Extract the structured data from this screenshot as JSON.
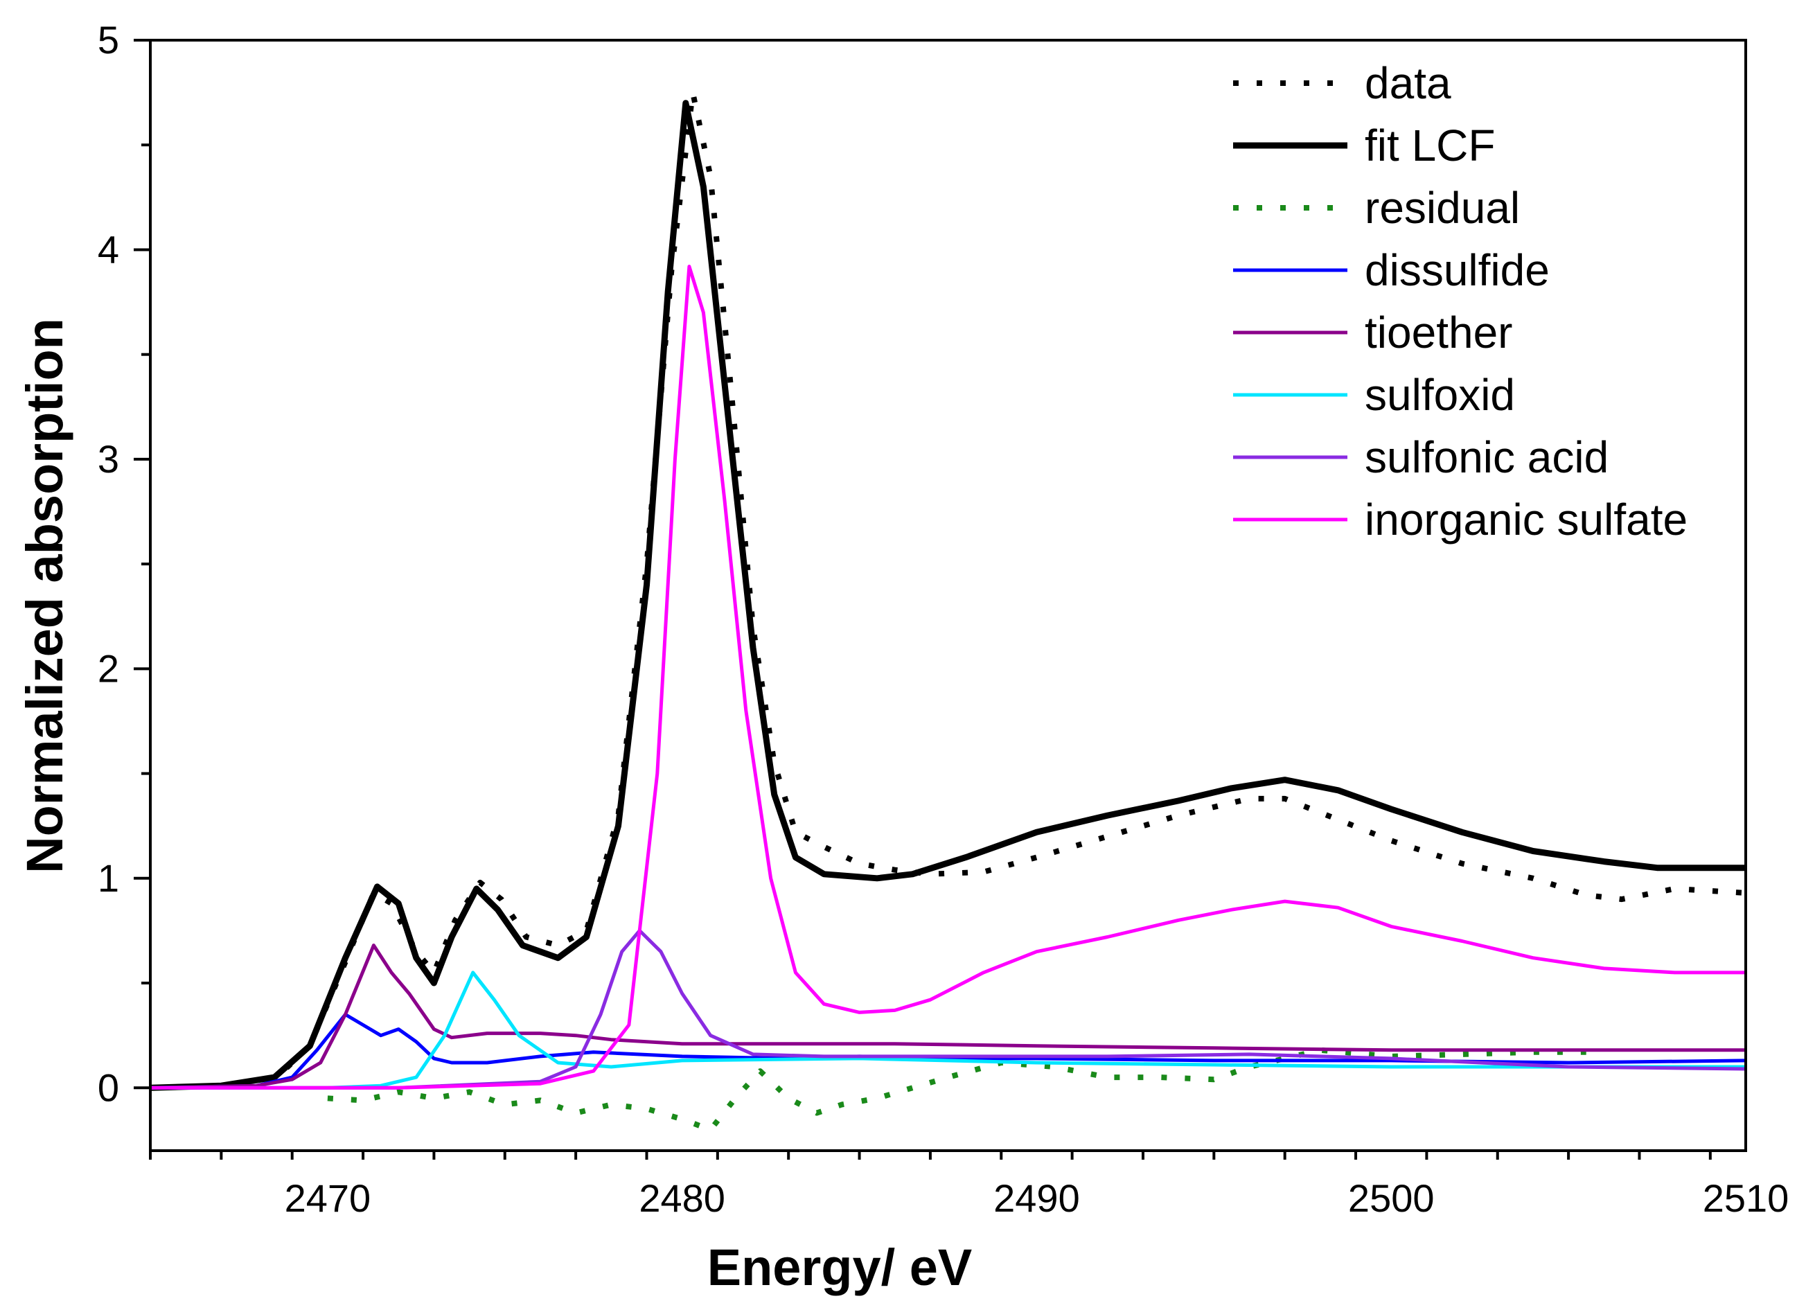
{
  "chart_data": {
    "type": "line",
    "title": "",
    "xlabel": "Energy/ eV",
    "ylabel": "Normalized absorption",
    "xlim": [
      2465,
      2510
    ],
    "ylim": [
      -0.3,
      5
    ],
    "xticks": [
      2470,
      2480,
      2490,
      2500,
      2510
    ],
    "yticks": [
      0,
      1,
      2,
      3,
      4,
      5
    ],
    "legend_position": "top-right",
    "series": [
      {
        "name": "data",
        "color": "#000000",
        "style": "dotted",
        "width": 8,
        "points": [
          [
            2465,
            0
          ],
          [
            2467,
            0.01
          ],
          [
            2468.5,
            0.04
          ],
          [
            2469.5,
            0.2
          ],
          [
            2470.5,
            0.6
          ],
          [
            2471.3,
            0.93
          ],
          [
            2471.8,
            0.88
          ],
          [
            2472.5,
            0.65
          ],
          [
            2473,
            0.55
          ],
          [
            2473.6,
            0.8
          ],
          [
            2474.3,
            0.98
          ],
          [
            2474.9,
            0.9
          ],
          [
            2475.6,
            0.72
          ],
          [
            2476.5,
            0.68
          ],
          [
            2477.3,
            0.75
          ],
          [
            2478.2,
            1.3
          ],
          [
            2479,
            2.5
          ],
          [
            2479.7,
            3.9
          ],
          [
            2480.3,
            4.75
          ],
          [
            2480.8,
            4.35
          ],
          [
            2481.4,
            3.3
          ],
          [
            2482,
            2.2
          ],
          [
            2482.6,
            1.55
          ],
          [
            2483.2,
            1.22
          ],
          [
            2484,
            1.15
          ],
          [
            2485,
            1.07
          ],
          [
            2486,
            1.04
          ],
          [
            2487,
            1.02
          ],
          [
            2488.5,
            1.03
          ],
          [
            2490,
            1.1
          ],
          [
            2492,
            1.2
          ],
          [
            2494,
            1.3
          ],
          [
            2496,
            1.38
          ],
          [
            2497,
            1.38
          ],
          [
            2498.5,
            1.28
          ],
          [
            2500,
            1.18
          ],
          [
            2502,
            1.07
          ],
          [
            2504,
            1.0
          ],
          [
            2505.5,
            0.92
          ],
          [
            2506.5,
            0.9
          ],
          [
            2508,
            0.95
          ],
          [
            2510,
            0.93
          ]
        ]
      },
      {
        "name": "fit LCF",
        "color": "#000000",
        "style": "solid",
        "width": 9,
        "points": [
          [
            2465,
            0
          ],
          [
            2467,
            0.01
          ],
          [
            2468.5,
            0.05
          ],
          [
            2469.5,
            0.2
          ],
          [
            2470.5,
            0.62
          ],
          [
            2471.4,
            0.96
          ],
          [
            2472,
            0.88
          ],
          [
            2472.5,
            0.62
          ],
          [
            2473,
            0.5
          ],
          [
            2473.5,
            0.72
          ],
          [
            2474.2,
            0.95
          ],
          [
            2474.8,
            0.85
          ],
          [
            2475.5,
            0.68
          ],
          [
            2476.5,
            0.62
          ],
          [
            2477.3,
            0.72
          ],
          [
            2478.2,
            1.25
          ],
          [
            2479,
            2.4
          ],
          [
            2479.6,
            3.8
          ],
          [
            2480.1,
            4.7
          ],
          [
            2480.6,
            4.3
          ],
          [
            2481.3,
            3.2
          ],
          [
            2482,
            2.1
          ],
          [
            2482.6,
            1.4
          ],
          [
            2483.2,
            1.1
          ],
          [
            2484,
            1.02
          ],
          [
            2485.5,
            1.0
          ],
          [
            2486.5,
            1.02
          ],
          [
            2488,
            1.1
          ],
          [
            2490,
            1.22
          ],
          [
            2492,
            1.3
          ],
          [
            2494,
            1.37
          ],
          [
            2495.5,
            1.43
          ],
          [
            2497,
            1.47
          ],
          [
            2498.5,
            1.42
          ],
          [
            2500,
            1.33
          ],
          [
            2502,
            1.22
          ],
          [
            2504,
            1.13
          ],
          [
            2506,
            1.08
          ],
          [
            2507.5,
            1.05
          ],
          [
            2510,
            1.05
          ]
        ]
      },
      {
        "name": "residual",
        "color": "#1a8a1a",
        "style": "dotted",
        "width": 8,
        "points": [
          [
            2470,
            -0.05
          ],
          [
            2471,
            -0.06
          ],
          [
            2472,
            -0.02
          ],
          [
            2473,
            -0.05
          ],
          [
            2474,
            -0.02
          ],
          [
            2475,
            -0.08
          ],
          [
            2476,
            -0.06
          ],
          [
            2477,
            -0.12
          ],
          [
            2478,
            -0.08
          ],
          [
            2479,
            -0.1
          ],
          [
            2480,
            -0.15
          ],
          [
            2480.8,
            -0.2
          ],
          [
            2481.5,
            -0.05
          ],
          [
            2482.2,
            0.08
          ],
          [
            2483,
            -0.05
          ],
          [
            2483.8,
            -0.12
          ],
          [
            2484.5,
            -0.08
          ],
          [
            2485.5,
            -0.05
          ],
          [
            2486.5,
            0
          ],
          [
            2487.5,
            0.05
          ],
          [
            2489,
            0.12
          ],
          [
            2490.5,
            0.1
          ],
          [
            2492,
            0.05
          ],
          [
            2493.5,
            0.05
          ],
          [
            2495,
            0.04
          ],
          [
            2496,
            0.1
          ],
          [
            2498,
            0.18
          ],
          [
            2500,
            0.15
          ],
          [
            2502,
            0.16
          ],
          [
            2504,
            0.17
          ],
          [
            2505.5,
            0.17
          ]
        ]
      },
      {
        "name": "dissulfide",
        "color": "#0000ff",
        "style": "solid",
        "width": 5,
        "points": [
          [
            2465,
            0
          ],
          [
            2468,
            0.01
          ],
          [
            2469,
            0.05
          ],
          [
            2469.7,
            0.18
          ],
          [
            2470.5,
            0.35
          ],
          [
            2471,
            0.3
          ],
          [
            2471.5,
            0.25
          ],
          [
            2472,
            0.28
          ],
          [
            2472.5,
            0.22
          ],
          [
            2473,
            0.14
          ],
          [
            2473.5,
            0.12
          ],
          [
            2474.5,
            0.12
          ],
          [
            2476,
            0.15
          ],
          [
            2477.5,
            0.17
          ],
          [
            2480,
            0.15
          ],
          [
            2483,
            0.14
          ],
          [
            2485,
            0.15
          ],
          [
            2487,
            0.14
          ],
          [
            2490,
            0.14
          ],
          [
            2495,
            0.13
          ],
          [
            2500,
            0.13
          ],
          [
            2505,
            0.12
          ],
          [
            2510,
            0.13
          ]
        ]
      },
      {
        "name": "tioether",
        "color": "#8b008b",
        "style": "solid",
        "width": 5,
        "points": [
          [
            2465,
            0
          ],
          [
            2468,
            0.01
          ],
          [
            2469,
            0.04
          ],
          [
            2469.8,
            0.12
          ],
          [
            2470.5,
            0.35
          ],
          [
            2471.3,
            0.68
          ],
          [
            2471.8,
            0.55
          ],
          [
            2472.3,
            0.45
          ],
          [
            2473,
            0.28
          ],
          [
            2473.5,
            0.24
          ],
          [
            2474.5,
            0.26
          ],
          [
            2476,
            0.26
          ],
          [
            2477,
            0.25
          ],
          [
            2478,
            0.23
          ],
          [
            2480,
            0.21
          ],
          [
            2483,
            0.21
          ],
          [
            2486,
            0.21
          ],
          [
            2490,
            0.2
          ],
          [
            2495,
            0.19
          ],
          [
            2500,
            0.18
          ],
          [
            2505,
            0.18
          ],
          [
            2510,
            0.18
          ]
        ]
      },
      {
        "name": "sulfoxid",
        "color": "#00e5ff",
        "style": "solid",
        "width": 5,
        "points": [
          [
            2465,
            0
          ],
          [
            2470,
            0
          ],
          [
            2471.5,
            0.01
          ],
          [
            2472.5,
            0.05
          ],
          [
            2473.3,
            0.25
          ],
          [
            2474.1,
            0.55
          ],
          [
            2474.7,
            0.42
          ],
          [
            2475.4,
            0.25
          ],
          [
            2476.5,
            0.12
          ],
          [
            2478,
            0.1
          ],
          [
            2480,
            0.13
          ],
          [
            2485,
            0.14
          ],
          [
            2490,
            0.12
          ],
          [
            2495,
            0.11
          ],
          [
            2500,
            0.1
          ],
          [
            2505,
            0.1
          ],
          [
            2510,
            0.1
          ]
        ]
      },
      {
        "name": "sulfonic acid",
        "color": "#8a2be2",
        "style": "solid",
        "width": 5,
        "points": [
          [
            2465,
            0
          ],
          [
            2472,
            0
          ],
          [
            2476,
            0.03
          ],
          [
            2477,
            0.1
          ],
          [
            2477.7,
            0.35
          ],
          [
            2478.3,
            0.65
          ],
          [
            2478.8,
            0.75
          ],
          [
            2479.4,
            0.65
          ],
          [
            2480,
            0.45
          ],
          [
            2480.8,
            0.25
          ],
          [
            2482,
            0.16
          ],
          [
            2484,
            0.15
          ],
          [
            2488,
            0.15
          ],
          [
            2492,
            0.15
          ],
          [
            2496,
            0.16
          ],
          [
            2500,
            0.14
          ],
          [
            2505,
            0.1
          ],
          [
            2510,
            0.09
          ]
        ]
      },
      {
        "name": "inorganic sulfate",
        "color": "#ff00ff",
        "style": "solid",
        "width": 5,
        "points": [
          [
            2465,
            0
          ],
          [
            2472,
            0
          ],
          [
            2476,
            0.02
          ],
          [
            2477.5,
            0.08
          ],
          [
            2478.5,
            0.3
          ],
          [
            2479.3,
            1.5
          ],
          [
            2479.8,
            3.0
          ],
          [
            2480.2,
            3.92
          ],
          [
            2480.6,
            3.7
          ],
          [
            2481.2,
            2.8
          ],
          [
            2481.8,
            1.8
          ],
          [
            2482.5,
            1.0
          ],
          [
            2483.2,
            0.55
          ],
          [
            2484,
            0.4
          ],
          [
            2485,
            0.36
          ],
          [
            2486,
            0.37
          ],
          [
            2487,
            0.42
          ],
          [
            2488.5,
            0.55
          ],
          [
            2490,
            0.65
          ],
          [
            2492,
            0.72
          ],
          [
            2494,
            0.8
          ],
          [
            2495.5,
            0.85
          ],
          [
            2497,
            0.89
          ],
          [
            2498.5,
            0.86
          ],
          [
            2500,
            0.77
          ],
          [
            2502,
            0.7
          ],
          [
            2504,
            0.62
          ],
          [
            2506,
            0.57
          ],
          [
            2508,
            0.55
          ],
          [
            2510,
            0.55
          ]
        ]
      }
    ]
  }
}
